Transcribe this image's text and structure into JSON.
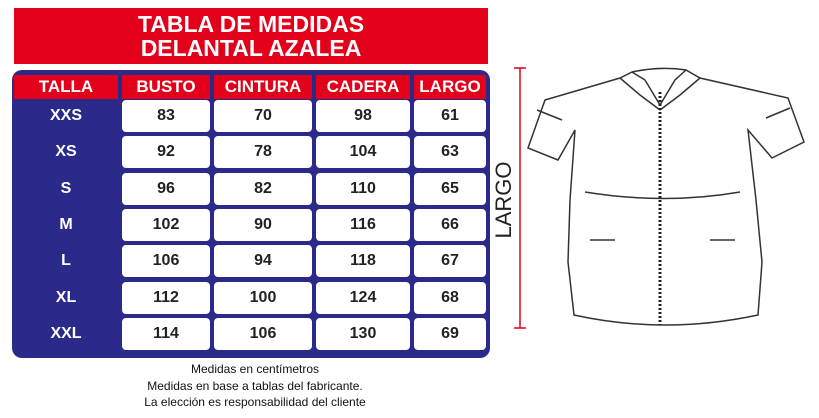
{
  "header": {
    "title_lines": [
      "TABLA DE MEDIDAS",
      "DELANTAL AZALEA"
    ]
  },
  "table": {
    "columns": [
      "TALLA",
      "BUSTO",
      "CINTURA",
      "CADERA",
      "LARGO"
    ],
    "rows": [
      [
        "XXS",
        83,
        70,
        98,
        61
      ],
      [
        "XS",
        92,
        78,
        104,
        63
      ],
      [
        "S",
        96,
        82,
        110,
        65
      ],
      [
        "M",
        102,
        90,
        116,
        66
      ],
      [
        "L",
        106,
        94,
        118,
        67
      ],
      [
        "XL",
        112,
        100,
        124,
        68
      ],
      [
        "XXL",
        114,
        106,
        130,
        69
      ]
    ]
  },
  "notes": [
    "Medidas en centímetros",
    "Medidas en base a tablas del fabricante.",
    "La elección es responsabilidad del cliente"
  ],
  "diagram": {
    "label": "LARGO"
  }
}
